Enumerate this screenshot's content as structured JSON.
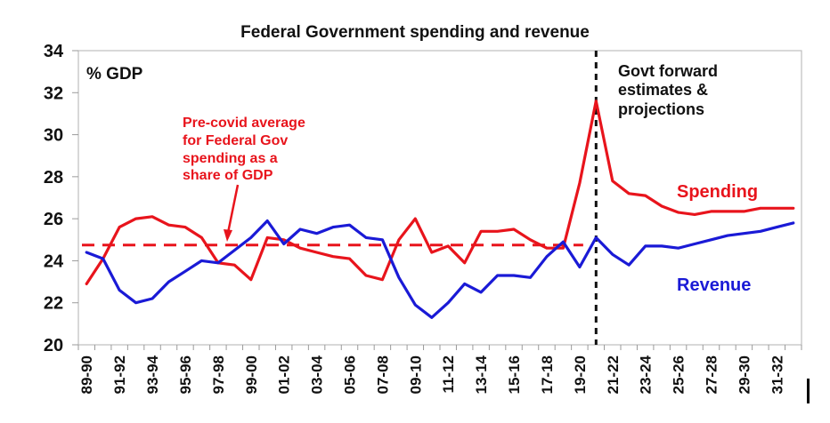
{
  "chart_data": {
    "type": "line",
    "title": "Federal Government spending and revenue",
    "ylabel": "% GDP",
    "xlabel": "",
    "ylim": [
      20,
      34
    ],
    "yticks": [
      20,
      22,
      24,
      26,
      28,
      30,
      32,
      34
    ],
    "grid": false,
    "categories": [
      "89-90",
      "90-91",
      "91-92",
      "92-93",
      "93-94",
      "94-95",
      "95-96",
      "96-97",
      "97-98",
      "98-99",
      "99-00",
      "00-01",
      "01-02",
      "02-03",
      "03-04",
      "04-05",
      "05-06",
      "06-07",
      "07-08",
      "08-09",
      "09-10",
      "10-11",
      "11-12",
      "12-13",
      "13-14",
      "14-15",
      "15-16",
      "16-17",
      "17-18",
      "18-19",
      "19-20",
      "20-21",
      "21-22",
      "22-23",
      "23-24",
      "24-25",
      "25-26",
      "26-27",
      "27-28",
      "28-29",
      "29-30",
      "30-31",
      "31-32",
      "32-33"
    ],
    "xtick_labels": [
      "89-90",
      "91-92",
      "93-94",
      "95-96",
      "97-98",
      "99-00",
      "01-02",
      "03-04",
      "05-06",
      "07-08",
      "09-10",
      "11-12",
      "13-14",
      "15-16",
      "17-18",
      "19-20",
      "21-22",
      "23-24",
      "25-26",
      "27-28",
      "29-30",
      "31-32"
    ],
    "series": [
      {
        "name": "Spending",
        "color": "#e8141c",
        "values": [
          22.9,
          24.1,
          25.6,
          26.0,
          26.1,
          25.7,
          25.6,
          25.1,
          23.9,
          23.8,
          23.1,
          25.1,
          25.0,
          24.6,
          24.4,
          24.2,
          24.1,
          23.3,
          23.1,
          25.0,
          26.0,
          24.4,
          24.7,
          23.9,
          25.4,
          25.4,
          25.5,
          25.0,
          24.6,
          24.6,
          27.7,
          31.6,
          27.8,
          27.2,
          27.1,
          26.6,
          26.3,
          26.2,
          26.35,
          26.35,
          26.35,
          26.5,
          26.5,
          26.5
        ]
      },
      {
        "name": "Revenue",
        "color": "#1a1ad6",
        "values": [
          24.4,
          24.1,
          22.6,
          22.0,
          22.2,
          23.0,
          23.5,
          24.0,
          23.9,
          24.5,
          25.1,
          25.9,
          24.8,
          25.5,
          25.3,
          25.6,
          25.7,
          25.1,
          25.0,
          23.2,
          21.9,
          21.3,
          22.0,
          22.9,
          22.5,
          23.3,
          23.3,
          23.2,
          24.2,
          24.9,
          23.7,
          25.1,
          24.3,
          23.8,
          24.7,
          24.7,
          24.6,
          24.8,
          25.0,
          25.2,
          25.3,
          25.4,
          25.6,
          25.8
        ]
      }
    ],
    "reference_line": {
      "label": "Pre-covid average",
      "value": 24.75,
      "color": "#e8141c",
      "style": "dashed"
    },
    "divider": {
      "at_category": "20-21",
      "color": "#111111",
      "style": "dashed"
    },
    "annotations": {
      "unit": "% GDP",
      "precovid": [
        "Pre-covid average",
        "for Federal Gov",
        "spending as a",
        "share of GDP"
      ],
      "forward": [
        "Govt forward",
        "estimates &",
        "projections"
      ],
      "spending_label": "Spending",
      "revenue_label": "Revenue"
    }
  }
}
